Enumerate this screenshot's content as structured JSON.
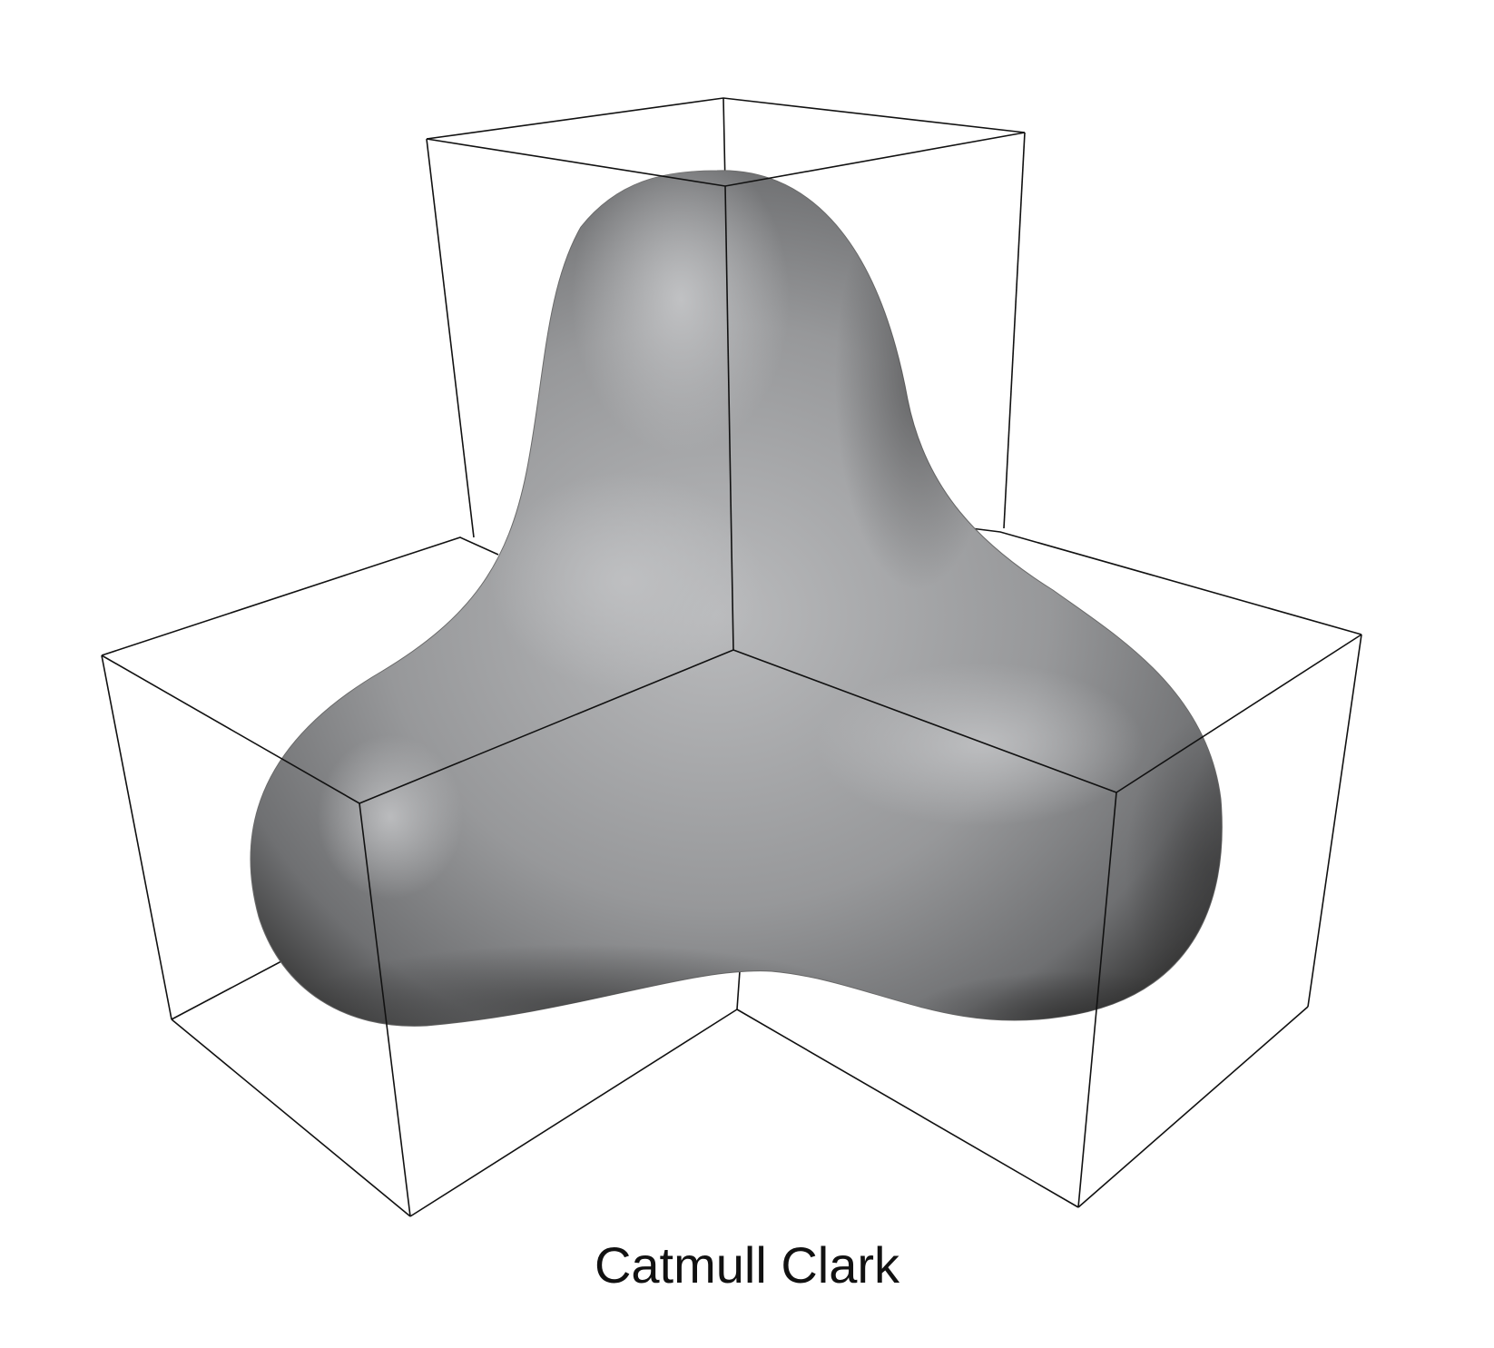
{
  "figure": {
    "caption": "Catmull Clark",
    "colors": {
      "background": "#ffffff",
      "surface_light": "#c2c3c5",
      "surface_mid": "#9a9b9d",
      "surface_dark": "#2c2c2c",
      "cage_lines": "#111111"
    }
  }
}
